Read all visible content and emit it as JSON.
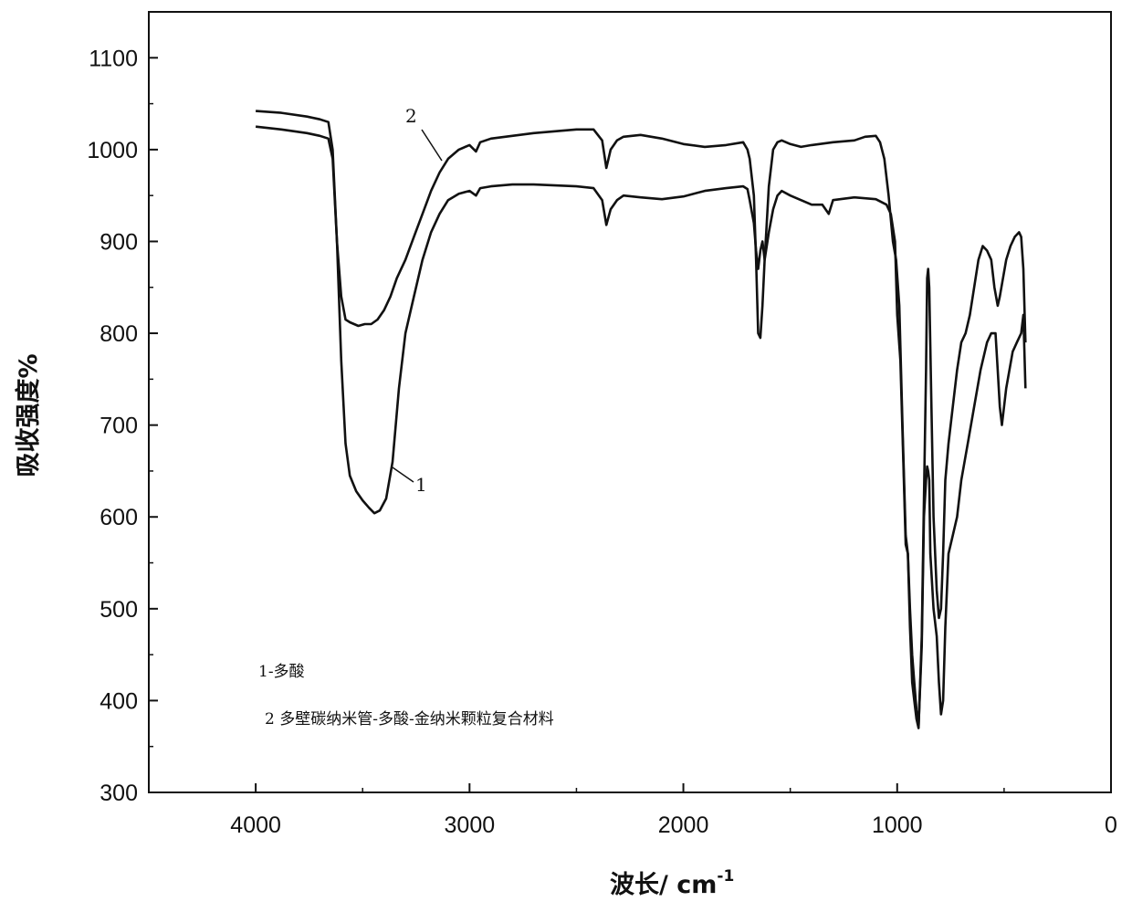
{
  "chart_data": {
    "type": "line",
    "title": "",
    "xlabel": "波长/ cm",
    "xlabel_sup": "-1",
    "ylabel": "吸收强度%",
    "xlim": [
      4500,
      0
    ],
    "ylim": [
      300,
      1150
    ],
    "xticks": [
      4000,
      3000,
      2000,
      1000,
      0
    ],
    "yticks": [
      300,
      400,
      500,
      600,
      700,
      800,
      900,
      1000,
      1100
    ],
    "grid": false,
    "legend_position": "bottom-left",
    "legend_entries": [
      "1-多酸",
      "2  多壁碳纳米管-多酸-金纳米颗粒复合材料"
    ],
    "series": [
      {
        "label": "1",
        "x": [
          4000,
          3880,
          3760,
          3700,
          3660,
          3640,
          3620,
          3600,
          3580,
          3560,
          3530,
          3500,
          3470,
          3445,
          3420,
          3390,
          3360,
          3330,
          3300,
          3260,
          3220,
          3180,
          3140,
          3100,
          3050,
          3000,
          2970,
          2950,
          2900,
          2800,
          2700,
          2600,
          2500,
          2420,
          2380,
          2360,
          2340,
          2310,
          2280,
          2200,
          2100,
          2000,
          1900,
          1800,
          1720,
          1700,
          1690,
          1670,
          1660,
          1650,
          1640,
          1630,
          1620,
          1600,
          1580,
          1560,
          1540,
          1500,
          1450,
          1400,
          1350,
          1320,
          1300,
          1200,
          1100,
          1050,
          1030,
          1010,
          1000,
          985,
          970,
          960,
          950,
          940,
          930,
          920,
          910,
          900,
          885,
          875,
          865,
          860,
          855,
          850,
          845,
          830,
          815,
          805,
          795,
          785,
          775,
          760,
          740,
          720,
          700,
          670,
          640,
          610,
          580,
          560,
          540,
          530,
          520,
          510,
          490,
          460,
          440,
          420,
          410,
          400
        ],
        "y": [
          1025,
          1022,
          1018,
          1015,
          1012,
          990,
          900,
          770,
          680,
          645,
          628,
          618,
          610,
          604,
          607,
          620,
          660,
          740,
          800,
          840,
          880,
          910,
          930,
          945,
          952,
          955,
          950,
          958,
          960,
          962,
          962,
          961,
          960,
          958,
          945,
          918,
          935,
          945,
          950,
          948,
          946,
          949,
          955,
          958,
          960,
          957,
          945,
          920,
          890,
          870,
          890,
          900,
          880,
          910,
          935,
          950,
          955,
          950,
          945,
          940,
          940,
          930,
          945,
          948,
          946,
          940,
          930,
          900,
          820,
          770,
          650,
          570,
          560,
          500,
          450,
          420,
          390,
          372,
          460,
          600,
          640,
          655,
          650,
          640,
          560,
          500,
          470,
          420,
          385,
          400,
          480,
          560,
          580,
          600,
          640,
          680,
          720,
          760,
          790,
          800,
          800,
          760,
          720,
          700,
          740,
          780,
          790,
          800,
          820,
          740
        ]
      },
      {
        "label": "2",
        "x": [
          4000,
          3880,
          3760,
          3700,
          3660,
          3640,
          3620,
          3600,
          3580,
          3560,
          3540,
          3520,
          3490,
          3460,
          3430,
          3400,
          3370,
          3340,
          3300,
          3260,
          3220,
          3180,
          3140,
          3100,
          3050,
          3000,
          2970,
          2950,
          2900,
          2800,
          2700,
          2600,
          2500,
          2420,
          2380,
          2360,
          2340,
          2310,
          2280,
          2200,
          2100,
          2000,
          1900,
          1800,
          1720,
          1700,
          1690,
          1670,
          1660,
          1650,
          1640,
          1630,
          1620,
          1600,
          1580,
          1560,
          1540,
          1500,
          1450,
          1400,
          1300,
          1200,
          1150,
          1100,
          1080,
          1060,
          1040,
          1020,
          1005,
          990,
          975,
          960,
          950,
          940,
          930,
          920,
          910,
          900,
          885,
          875,
          865,
          860,
          855,
          850,
          840,
          830,
          815,
          805,
          795,
          785,
          775,
          760,
          740,
          720,
          700,
          680,
          660,
          640,
          620,
          600,
          580,
          560,
          545,
          530,
          520,
          505,
          490,
          470,
          450,
          430,
          420,
          410,
          400
        ],
        "y": [
          1042,
          1040,
          1036,
          1033,
          1030,
          1000,
          900,
          840,
          815,
          812,
          810,
          808,
          810,
          810,
          815,
          825,
          840,
          860,
          880,
          905,
          930,
          955,
          975,
          990,
          1000,
          1005,
          998,
          1008,
          1012,
          1015,
          1018,
          1020,
          1022,
          1022,
          1010,
          980,
          1000,
          1010,
          1014,
          1016,
          1012,
          1006,
          1003,
          1005,
          1008,
          1000,
          990,
          950,
          880,
          800,
          795,
          830,
          880,
          960,
          1000,
          1008,
          1010,
          1006,
          1003,
          1005,
          1008,
          1010,
          1014,
          1015,
          1008,
          990,
          950,
          900,
          880,
          830,
          700,
          580,
          560,
          480,
          420,
          400,
          380,
          370,
          470,
          620,
          760,
          860,
          870,
          850,
          720,
          600,
          520,
          490,
          500,
          560,
          640,
          680,
          720,
          760,
          790,
          800,
          820,
          850,
          880,
          895,
          890,
          880,
          850,
          830,
          840,
          860,
          880,
          895,
          905,
          910,
          905,
          870,
          790
        ]
      }
    ]
  }
}
